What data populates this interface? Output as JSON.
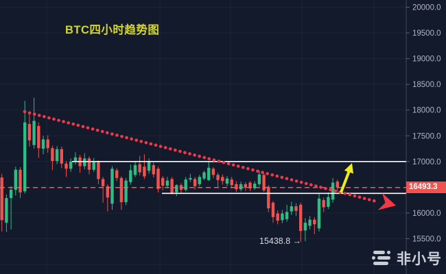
{
  "title": {
    "text": "BTC四小时趋势图"
  },
  "annotation": {
    "text": "15438.8 →"
  },
  "price_label": {
    "text": "16493.3"
  },
  "watermark": {
    "text": "非小号"
  },
  "y_axis": {
    "labels": [
      "20000.0",
      "19500.0",
      "19000.0",
      "18500.0",
      "18000.0",
      "17500.0",
      "17000.0",
      "16000.0",
      "15500.0"
    ],
    "prices": [
      20000,
      19500,
      19000,
      18500,
      18000,
      17500,
      17000,
      16000,
      15500
    ]
  },
  "colors": {
    "background": "#131a2b",
    "up_candle": "#2ebd85",
    "down_candle": "#ef5350",
    "trend_line": "#f23747",
    "level_line": "#ffffff",
    "last_price_line": "#f06a6a",
    "last_price_tag_bg": "#ef5350",
    "title_yellow": "#d4d62c",
    "arrow_yellow": "#f0eb1e",
    "axis_text": "#b0b5c5",
    "grid": "rgba(160,170,195,0.08)"
  },
  "chart_data": {
    "type": "candlestick",
    "title": "BTC四小时趋势图",
    "ylim": [
      15000,
      20000
    ],
    "grid_step": 500,
    "candle_count": 75,
    "levels": {
      "resistance": 17000,
      "support": 16380,
      "last_price": 16493.3,
      "annotated_low": 15438.8
    },
    "trend_line": {
      "style": "dotted-red-arrow",
      "start_price": 17980,
      "end_price": 16400,
      "direction": "descending"
    },
    "breakout_arrow": {
      "style": "yellow-up-arrow",
      "from_price": 16400,
      "to_price": 16950
    },
    "ohlc": [
      [
        17150,
        17230,
        16400,
        16690
      ],
      [
        16690,
        16760,
        15640,
        15860
      ],
      [
        15810,
        16360,
        15630,
        16290
      ],
      [
        16290,
        16520,
        15680,
        16450
      ],
      [
        16450,
        16900,
        16340,
        16840
      ],
      [
        16840,
        16890,
        16290,
        16400
      ],
      [
        16420,
        18180,
        16380,
        17760
      ],
      [
        17730,
        17920,
        17290,
        17410
      ],
      [
        17320,
        18240,
        17250,
        17790
      ],
      [
        17690,
        17760,
        17070,
        17260
      ],
      [
        17250,
        17500,
        17140,
        17430
      ],
      [
        17430,
        17510,
        17170,
        17260
      ],
      [
        17260,
        17310,
        16830,
        17010
      ],
      [
        17010,
        17300,
        16950,
        17240
      ],
      [
        17240,
        17290,
        16870,
        16960
      ],
      [
        16960,
        17010,
        16700,
        16860
      ],
      [
        16860,
        17060,
        16800,
        17000
      ],
      [
        17000,
        17180,
        16940,
        17080
      ],
      [
        17080,
        17130,
        16780,
        16910
      ],
      [
        16910,
        17160,
        16850,
        17060
      ],
      [
        17060,
        17100,
        16750,
        16840
      ],
      [
        16840,
        17070,
        16800,
        16990
      ],
      [
        16990,
        17020,
        16560,
        16660
      ],
      [
        16660,
        16700,
        16200,
        16520
      ],
      [
        16520,
        16560,
        16030,
        16300
      ],
      [
        16180,
        16910,
        16060,
        16860
      ],
      [
        16830,
        16870,
        16620,
        16680
      ],
      [
        16680,
        16710,
        16060,
        16210
      ],
      [
        16210,
        16680,
        16150,
        16630
      ],
      [
        16600,
        16940,
        16550,
        16830
      ],
      [
        16740,
        16990,
        16700,
        16930
      ],
      [
        16950,
        17110,
        16730,
        16790
      ],
      [
        16900,
        17140,
        16660,
        16710
      ],
      [
        16820,
        17060,
        16760,
        17000
      ],
      [
        16930,
        16980,
        16690,
        16750
      ],
      [
        16860,
        16900,
        16400,
        16470
      ],
      [
        16680,
        16720,
        16440,
        16530
      ],
      [
        16530,
        16700,
        16480,
        16630
      ],
      [
        16660,
        16700,
        16360,
        16390
      ],
      [
        16400,
        16560,
        16330,
        16540
      ],
      [
        16540,
        16580,
        16390,
        16450
      ],
      [
        16450,
        16700,
        16420,
        16650
      ],
      [
        16650,
        16760,
        16600,
        16680
      ],
      [
        16660,
        16700,
        16450,
        16520
      ],
      [
        16560,
        16740,
        16520,
        16700
      ],
      [
        16670,
        16820,
        16640,
        16790
      ],
      [
        16640,
        17000,
        16620,
        16880
      ],
      [
        16860,
        16890,
        16680,
        16740
      ],
      [
        16740,
        16780,
        16500,
        16640
      ],
      [
        16700,
        16750,
        16550,
        16620
      ],
      [
        16570,
        16720,
        16520,
        16670
      ],
      [
        16650,
        16700,
        16480,
        16540
      ],
      [
        16560,
        16620,
        16410,
        16460
      ],
      [
        16460,
        16610,
        16420,
        16560
      ],
      [
        16560,
        16600,
        16430,
        16490
      ],
      [
        16590,
        16620,
        16430,
        16480
      ],
      [
        16480,
        16620,
        16450,
        16570
      ],
      [
        16560,
        16820,
        16520,
        16750
      ],
      [
        16740,
        16770,
        16410,
        16440
      ],
      [
        16510,
        16540,
        16020,
        16090
      ],
      [
        16200,
        16230,
        15810,
        15920
      ],
      [
        15990,
        16050,
        15780,
        15850
      ],
      [
        15860,
        16060,
        15800,
        15990
      ],
      [
        15880,
        16160,
        15830,
        16020
      ],
      [
        16030,
        16220,
        15960,
        16130
      ],
      [
        16130,
        16190,
        15940,
        16040
      ],
      [
        16160,
        16200,
        15438.8,
        15650
      ],
      [
        15660,
        15900,
        15450,
        15810
      ],
      [
        15750,
        15940,
        15680,
        15870
      ],
      [
        15870,
        15920,
        15590,
        15780
      ],
      [
        15700,
        16380,
        15640,
        16280
      ],
      [
        16250,
        16300,
        16020,
        16110
      ],
      [
        16120,
        16400,
        16080,
        16310
      ],
      [
        16260,
        16680,
        16200,
        16590
      ],
      [
        16610,
        16650,
        16410,
        16493.3
      ]
    ]
  }
}
